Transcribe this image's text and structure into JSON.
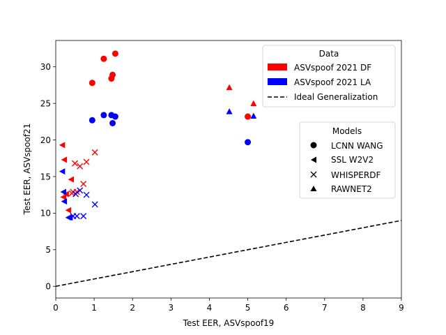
{
  "chart_data": {
    "type": "scatter",
    "xlabel": "Test EER, ASVspoof19",
    "ylabel": "Test EER, ASVspoof21",
    "xlim": [
      0,
      9
    ],
    "ylim": [
      -1.6,
      33.6
    ],
    "xticks": [
      "0",
      "1",
      "2",
      "3",
      "4",
      "5",
      "6",
      "7",
      "8",
      "9"
    ],
    "yticks": [
      "0",
      "5",
      "10",
      "15",
      "20",
      "25",
      "30"
    ],
    "grid": false,
    "colors": {
      "df": "#ff0000",
      "la": "#0000ff",
      "line": "#000000"
    },
    "legend_data": {
      "title": "Data",
      "placement": "top-right",
      "items": [
        {
          "label": "ASVspoof 2021 DF",
          "color": "#ff0000"
        },
        {
          "label": "ASVspoof 2021 LA",
          "color": "#0000ff"
        },
        {
          "label": "Ideal Generalization",
          "style": "dashed"
        }
      ]
    },
    "legend_models": {
      "title": "Models",
      "placement": "center-right",
      "items": [
        {
          "label": "LCNN WANG",
          "marker": "circle"
        },
        {
          "label": "SSL W2V2",
          "marker": "triangle-left"
        },
        {
          "label": "WHISPERDF",
          "marker": "x"
        },
        {
          "label": "RAWNET2",
          "marker": "triangle-up"
        }
      ]
    },
    "ideal_line": {
      "label": "Ideal Generalization",
      "x": [
        0,
        9
      ],
      "y": [
        0,
        9
      ]
    },
    "series": [
      {
        "name": "LCNN WANG - ASVspoof 2021 DF",
        "marker": "circle",
        "color": "#ff0000",
        "points": [
          [
            0.95,
            27.8
          ],
          [
            1.25,
            31.1
          ],
          [
            1.55,
            31.8
          ],
          [
            1.45,
            28.4
          ],
          [
            1.48,
            28.9
          ],
          [
            5.0,
            23.2
          ]
        ]
      },
      {
        "name": "LCNN WANG - ASVspoof 2021 LA",
        "marker": "circle",
        "color": "#0000ff",
        "points": [
          [
            0.95,
            22.7
          ],
          [
            1.25,
            23.4
          ],
          [
            1.45,
            23.4
          ],
          [
            1.55,
            23.2
          ],
          [
            1.48,
            22.3
          ],
          [
            5.0,
            19.7
          ]
        ]
      },
      {
        "name": "SSL W2V2 - ASVspoof 2021 DF",
        "marker": "triangle-left",
        "color": "#ff0000",
        "points": [
          [
            0.17,
            19.3
          ],
          [
            0.22,
            17.3
          ],
          [
            0.4,
            14.6
          ],
          [
            0.2,
            12.2
          ],
          [
            0.27,
            12.6
          ],
          [
            0.33,
            10.4
          ]
        ]
      },
      {
        "name": "SSL W2V2 - ASVspoof 2021 LA",
        "marker": "triangle-left",
        "color": "#0000ff",
        "points": [
          [
            0.17,
            15.7
          ],
          [
            0.2,
            12.9
          ],
          [
            0.22,
            11.6
          ],
          [
            0.33,
            9.4
          ],
          [
            0.37,
            9.4
          ]
        ]
      },
      {
        "name": "WHISPERDF - ASVspoof 2021 DF",
        "marker": "x",
        "color": "#ff0000",
        "points": [
          [
            1.02,
            18.3
          ],
          [
            0.8,
            17.0
          ],
          [
            0.5,
            16.8
          ],
          [
            0.63,
            16.4
          ],
          [
            0.72,
            14.0
          ],
          [
            0.45,
            12.9
          ],
          [
            0.55,
            12.9
          ],
          [
            0.42,
            12.7
          ]
        ]
      },
      {
        "name": "WHISPERDF - ASVspoof 2021 LA",
        "marker": "x",
        "color": "#0000ff",
        "points": [
          [
            0.63,
            13.1
          ],
          [
            0.8,
            12.5
          ],
          [
            0.52,
            12.6
          ],
          [
            1.02,
            11.2
          ],
          [
            0.45,
            9.6
          ],
          [
            0.55,
            9.6
          ],
          [
            0.72,
            9.6
          ]
        ]
      },
      {
        "name": "RAWNET2 - ASVspoof 2021 DF",
        "marker": "triangle-up",
        "color": "#ff0000",
        "points": [
          [
            4.52,
            27.2
          ],
          [
            5.15,
            25.0
          ]
        ]
      },
      {
        "name": "RAWNET2 - ASVspoof 2021 LA",
        "marker": "triangle-up",
        "color": "#0000ff",
        "points": [
          [
            4.52,
            23.9
          ],
          [
            5.15,
            23.3
          ]
        ]
      }
    ]
  }
}
